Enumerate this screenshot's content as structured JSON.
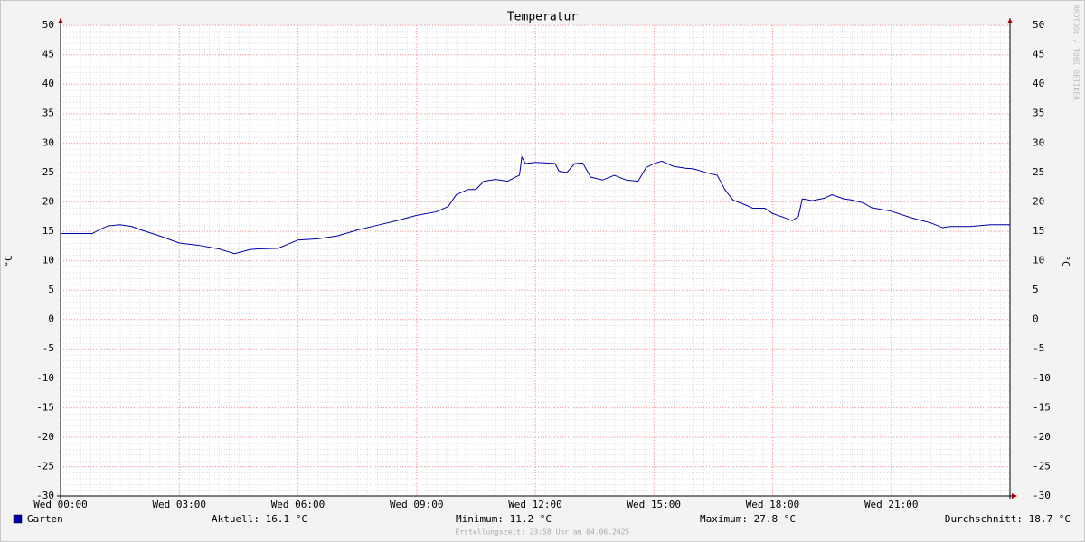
{
  "chart_data": {
    "type": "line",
    "title": "Temperatur",
    "y_label": "°C",
    "x": [
      0,
      0.5,
      0.8,
      1.0,
      1.2,
      1.5,
      1.8,
      2.0,
      2.5,
      3.0,
      3.5,
      4.0,
      4.4,
      4.8,
      5.0,
      5.5,
      6.0,
      6.5,
      7.0,
      7.5,
      8.0,
      8.5,
      9.0,
      9.5,
      9.8,
      10.0,
      10.3,
      10.5,
      10.7,
      11.0,
      11.3,
      11.5,
      11.6,
      11.66,
      11.75,
      12.0,
      12.3,
      12.5,
      12.6,
      12.8,
      13.0,
      13.2,
      13.4,
      13.7,
      14.0,
      14.3,
      14.6,
      14.8,
      15.0,
      15.2,
      15.5,
      15.8,
      16.0,
      16.3,
      16.6,
      16.8,
      17.0,
      17.3,
      17.5,
      17.8,
      18.0,
      18.3,
      18.5,
      18.65,
      18.75,
      19.0,
      19.3,
      19.5,
      19.8,
      20.0,
      20.3,
      20.5,
      21.0,
      21.5,
      22.0,
      22.3,
      22.5,
      23.0,
      23.5,
      24.0
    ],
    "series": [
      {
        "name": "Garten",
        "color": "#0000aa",
        "values": [
          14.6,
          14.6,
          14.6,
          15.3,
          15.9,
          16.1,
          15.8,
          15.3,
          14.2,
          13.0,
          12.6,
          12.0,
          11.2,
          11.9,
          12.0,
          12.1,
          13.5,
          13.7,
          14.2,
          15.2,
          16.0,
          16.8,
          17.7,
          18.3,
          19.2,
          21.2,
          22.1,
          22.1,
          23.5,
          23.8,
          23.5,
          24.2,
          24.5,
          27.6,
          26.5,
          26.7,
          26.6,
          26.5,
          25.2,
          25.0,
          26.5,
          26.6,
          24.2,
          23.7,
          24.5,
          23.7,
          23.5,
          25.8,
          26.5,
          26.9,
          26.0,
          25.7,
          25.6,
          25.0,
          24.5,
          22.0,
          20.3,
          19.5,
          18.9,
          18.9,
          18.0,
          17.3,
          16.8,
          17.5,
          20.5,
          20.2,
          20.6,
          21.2,
          20.5,
          20.3,
          19.8,
          19.0,
          18.4,
          17.3,
          16.4,
          15.6,
          15.8,
          15.8,
          16.1,
          16.1
        ]
      }
    ],
    "xlim": [
      0,
      24
    ],
    "xticks": [
      {
        "value": 0,
        "label": "Wed 00:00"
      },
      {
        "value": 3,
        "label": "Wed 03:00"
      },
      {
        "value": 6,
        "label": "Wed 06:00"
      },
      {
        "value": 9,
        "label": "Wed 09:00"
      },
      {
        "value": 12,
        "label": "Wed 12:00"
      },
      {
        "value": 15,
        "label": "Wed 15:00"
      },
      {
        "value": 18,
        "label": "Wed 18:00"
      },
      {
        "value": 21,
        "label": "Wed 21:00"
      }
    ],
    "ylim": [
      -30,
      50
    ],
    "yticks": [
      -30,
      -25,
      -20,
      -15,
      -10,
      -5,
      0,
      5,
      10,
      15,
      20,
      25,
      30,
      35,
      40,
      45,
      50
    ],
    "grid": true,
    "stats": [
      "Aktuell: 16.1 °C",
      "Minimum: 11.2 °C",
      "Maximum: 27.8 °C",
      "Durchschnitt: 18.7 °C"
    ],
    "footer": "Erstellungszeit: 23:58 Uhr am 04.06.2025",
    "watermark": "RRDTOOL / TOBI OETIKER"
  }
}
